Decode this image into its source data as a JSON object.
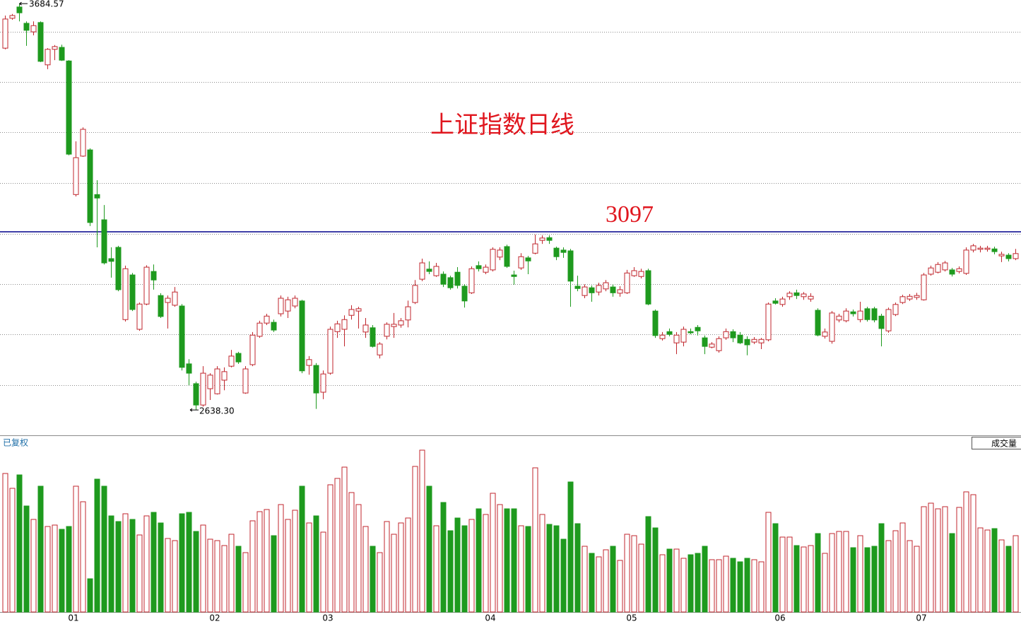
{
  "chart_data": {
    "type": "candlestick",
    "title": "上证指数日线",
    "hline_label": "3097",
    "hline": 3097,
    "hline_color": "#00008b",
    "high_label": "3684.57",
    "low_label": "2638.30",
    "adjust_label": "已复权",
    "volume_label": "成交量",
    "up_color": "#c0262d",
    "down_color": "#1e9a1e",
    "ylim": [
      2573,
      3694
    ],
    "ygrid": [
      3612,
      3483,
      3354,
      3223,
      3092,
      2962,
      2833,
      2702
    ],
    "grid": true,
    "volume_ylim": [
      0,
      229
    ],
    "categories": [
      null,
      null,
      null,
      null,
      null,
      null,
      null,
      null,
      null,
      null,
      "01",
      null,
      null,
      null,
      null,
      null,
      null,
      null,
      null,
      null,
      null,
      null,
      null,
      null,
      null,
      null,
      null,
      null,
      null,
      null,
      "02",
      null,
      null,
      null,
      null,
      null,
      null,
      null,
      null,
      null,
      null,
      null,
      null,
      null,
      null,
      null,
      "03",
      null,
      null,
      null,
      null,
      null,
      null,
      null,
      null,
      null,
      null,
      null,
      null,
      null,
      null,
      null,
      null,
      null,
      null,
      null,
      null,
      null,
      null,
      "04",
      null,
      null,
      null,
      null,
      null,
      null,
      null,
      null,
      null,
      null,
      null,
      null,
      null,
      null,
      null,
      null,
      null,
      null,
      null,
      "05",
      null,
      null,
      null,
      null,
      null,
      null,
      null,
      null,
      null,
      null,
      null,
      null,
      null,
      null,
      null,
      null,
      null,
      null,
      null,
      null,
      "06",
      null,
      null,
      null,
      null,
      null,
      null,
      null,
      null,
      null,
      null,
      null,
      null,
      null,
      null,
      null,
      null,
      null,
      null,
      null,
      "07",
      null,
      null,
      null,
      null,
      null,
      null,
      null,
      null,
      null,
      null,
      null,
      null,
      null
    ],
    "open": [
      3570,
      3647,
      3676,
      3634,
      3612,
      3636,
      3527,
      3567,
      3572,
      3537,
      3193,
      3292,
      3308,
      3193,
      3128,
      3028,
      3057,
      2871,
      2986,
      2846,
      2911,
      2995,
      2933,
      2915,
      2908,
      2906,
      2757,
      2706,
      2651,
      2693,
      2680,
      2715,
      2751,
      2784,
      2682,
      2755,
      2828,
      2862,
      2864,
      2886,
      2893,
      2906,
      2919,
      2753,
      2753,
      2684,
      2733,
      2840,
      2846,
      2882,
      2893,
      2839,
      2850,
      2780,
      2828,
      2853,
      2857,
      2870,
      2915,
      2975,
      3001,
      2984,
      2988,
      2979,
      2993,
      2957,
      2940,
      3010,
      2993,
      2999,
      3032,
      3059,
      2986,
      3004,
      3030,
      3042,
      3075,
      3082,
      3055,
      3050,
      3048,
      2957,
      2933,
      2953,
      2942,
      2950,
      2955,
      2939,
      2940,
      2984,
      2982,
      2997,
      2893,
      2822,
      2840,
      2811,
      2813,
      2840,
      2851,
      2824,
      2800,
      2791,
      2824,
      2840,
      2831,
      2820,
      2813,
      2811,
      2819,
      2919,
      2910,
      2930,
      2940,
      2930,
      2924,
      2895,
      2828,
      2815,
      2870,
      2868,
      2891,
      2871,
      2899,
      2899,
      2880,
      2842,
      2884,
      2915,
      2924,
      2928,
      2922,
      2988,
      2993,
      2999,
      2999,
      2995,
      2990,
      3050,
      3052,
      3052,
      3053,
      3035,
      3037,
      3028
    ],
    "high": [
      3654,
      3658,
      3684.57,
      3639,
      3639,
      3639,
      3570,
      3578,
      3579,
      3539,
      3330,
      3366,
      3312,
      3230,
      3166,
      3057,
      3061,
      3010,
      2991,
      2915,
      3011,
      3013,
      2939,
      2933,
      2955,
      2911,
      2769,
      2711,
      2751,
      2733,
      2751,
      2748,
      2793,
      2788,
      2751,
      2839,
      2868,
      2886,
      2871,
      2933,
      2930,
      2933,
      2922,
      2777,
      2759,
      2740,
      2853,
      2868,
      2882,
      2908,
      2904,
      2875,
      2857,
      2813,
      2864,
      2888,
      2875,
      2920,
      2973,
      3028,
      3021,
      3017,
      2995,
      2984,
      3006,
      2962,
      3008,
      3021,
      3013,
      3057,
      3057,
      3064,
      2997,
      3042,
      3035,
      3090,
      3088,
      3088,
      3059,
      3057,
      3053,
      2984,
      2962,
      2959,
      2966,
      2973,
      2961,
      2957,
      2999,
      3006,
      3002,
      3002,
      2897,
      2839,
      2848,
      2839,
      2853,
      2848,
      2857,
      2830,
      2813,
      2828,
      2848,
      2846,
      2839,
      2828,
      2826,
      2824,
      2915,
      2926,
      2930,
      2944,
      2948,
      2942,
      2939,
      2900,
      2848,
      2893,
      2886,
      2900,
      2897,
      2917,
      2904,
      2904,
      2886,
      2902,
      2915,
      2935,
      2937,
      2940,
      2991,
      3010,
      3019,
      3022,
      3004,
      3008,
      3057,
      3066,
      3061,
      3061,
      3059,
      3046,
      3042,
      3053
    ],
    "low": [
      3567,
      3643,
      3639,
      3576,
      3603,
      3534,
      3516,
      3539,
      3537,
      3294,
      3188,
      3290,
      3112,
      3057,
      3013,
      2979,
      2944,
      2866,
      2893,
      2842,
      2908,
      2948,
      2875,
      2848,
      2904,
      2740,
      2702,
      2638.3,
      2647,
      2664,
      2678,
      2689,
      2748,
      2757,
      2680,
      2751,
      2824,
      2857,
      2839,
      2879,
      2875,
      2900,
      2733,
      2729,
      2641,
      2666,
      2729,
      2824,
      2802,
      2871,
      2848,
      2824,
      2799,
      2771,
      2820,
      2824,
      2850,
      2851,
      2911,
      2970,
      2988,
      2981,
      2955,
      2948,
      2951,
      2902,
      2937,
      2995,
      2988,
      2995,
      3024,
      3004,
      2961,
      2999,
      2988,
      3039,
      3066,
      3066,
      3024,
      3030,
      2904,
      2944,
      2926,
      2917,
      2933,
      2944,
      2930,
      2930,
      2937,
      2981,
      2977,
      2908,
      2824,
      2817,
      2828,
      2782,
      2802,
      2833,
      2830,
      2782,
      2797,
      2786,
      2819,
      2813,
      2808,
      2779,
      2808,
      2795,
      2815,
      2910,
      2904,
      2922,
      2924,
      2922,
      2917,
      2828,
      2822,
      2809,
      2864,
      2864,
      2879,
      2864,
      2866,
      2864,
      2802,
      2837,
      2880,
      2911,
      2919,
      2922,
      2920,
      2984,
      2990,
      2995,
      2982,
      2990,
      2986,
      3044,
      3044,
      3046,
      3039,
      3019,
      3021,
      3024
    ],
    "close": [
      3645,
      3654,
      3661,
      3616,
      3628,
      3536,
      3567,
      3574,
      3539,
      3297,
      3288,
      3361,
      3121,
      3184,
      3017,
      3021,
      2948,
      3002,
      2897,
      2911,
      3006,
      2973,
      2879,
      2926,
      2942,
      2748,
      2733,
      2651,
      2733,
      2728,
      2744,
      2737,
      2777,
      2762,
      2744,
      2831,
      2862,
      2880,
      2844,
      2926,
      2922,
      2926,
      2739,
      2768,
      2682,
      2731,
      2846,
      2860,
      2871,
      2897,
      2899,
      2857,
      2802,
      2808,
      2859,
      2859,
      2868,
      2904,
      2959,
      3017,
      2995,
      3008,
      2962,
      2953,
      2959,
      2919,
      3002,
      3002,
      3006,
      3052,
      3050,
      3008,
      2982,
      3033,
      3022,
      3066,
      3081,
      3075,
      3033,
      3044,
      2970,
      2951,
      2955,
      2940,
      2959,
      2966,
      2940,
      2948,
      2991,
      2997,
      2995,
      2911,
      2830,
      2831,
      2833,
      2831,
      2846,
      2837,
      2842,
      2802,
      2808,
      2822,
      2840,
      2824,
      2811,
      2806,
      2820,
      2820,
      2911,
      2913,
      2924,
      2939,
      2933,
      2937,
      2931,
      2831,
      2839,
      2888,
      2880,
      2893,
      2886,
      2893,
      2871,
      2870,
      2848,
      2897,
      2910,
      2930,
      2931,
      2933,
      2986,
      3004,
      3013,
      3017,
      2988,
      3002,
      3050,
      3061,
      3055,
      3055,
      3046,
      3039,
      3028,
      3041
    ],
    "volume": [
      196,
      175,
      194,
      150,
      131,
      178,
      121,
      123,
      117,
      121,
      178,
      156,
      47,
      188,
      178,
      136,
      128,
      139,
      131,
      109,
      136,
      141,
      126,
      104,
      101,
      139,
      141,
      114,
      123,
      103,
      101,
      94,
      110,
      93,
      84,
      129,
      142,
      145,
      108,
      152,
      131,
      144,
      178,
      126,
      136,
      113,
      180,
      189,
      205,
      169,
      152,
      121,
      93,
      84,
      128,
      110,
      126,
      133,
      206,
      229,
      178,
      122,
      155,
      115,
      133,
      122,
      131,
      146,
      138,
      168,
      152,
      146,
      146,
      122,
      121,
      204,
      138,
      124,
      122,
      103,
      184,
      125,
      93,
      83,
      78,
      88,
      93,
      73,
      110,
      108,
      96,
      135,
      119,
      81,
      89,
      89,
      76,
      81,
      83,
      93,
      74,
      74,
      79,
      76,
      71,
      76,
      74,
      71,
      141,
      125,
      106,
      106,
      94,
      92,
      94,
      111,
      83,
      111,
      114,
      114,
      91,
      108,
      91,
      93,
      125,
      101,
      115,
      126,
      101,
      93,
      149,
      154,
      146,
      149,
      111,
      148,
      170,
      166,
      119,
      116,
      118,
      102,
      93,
      108
    ]
  }
}
